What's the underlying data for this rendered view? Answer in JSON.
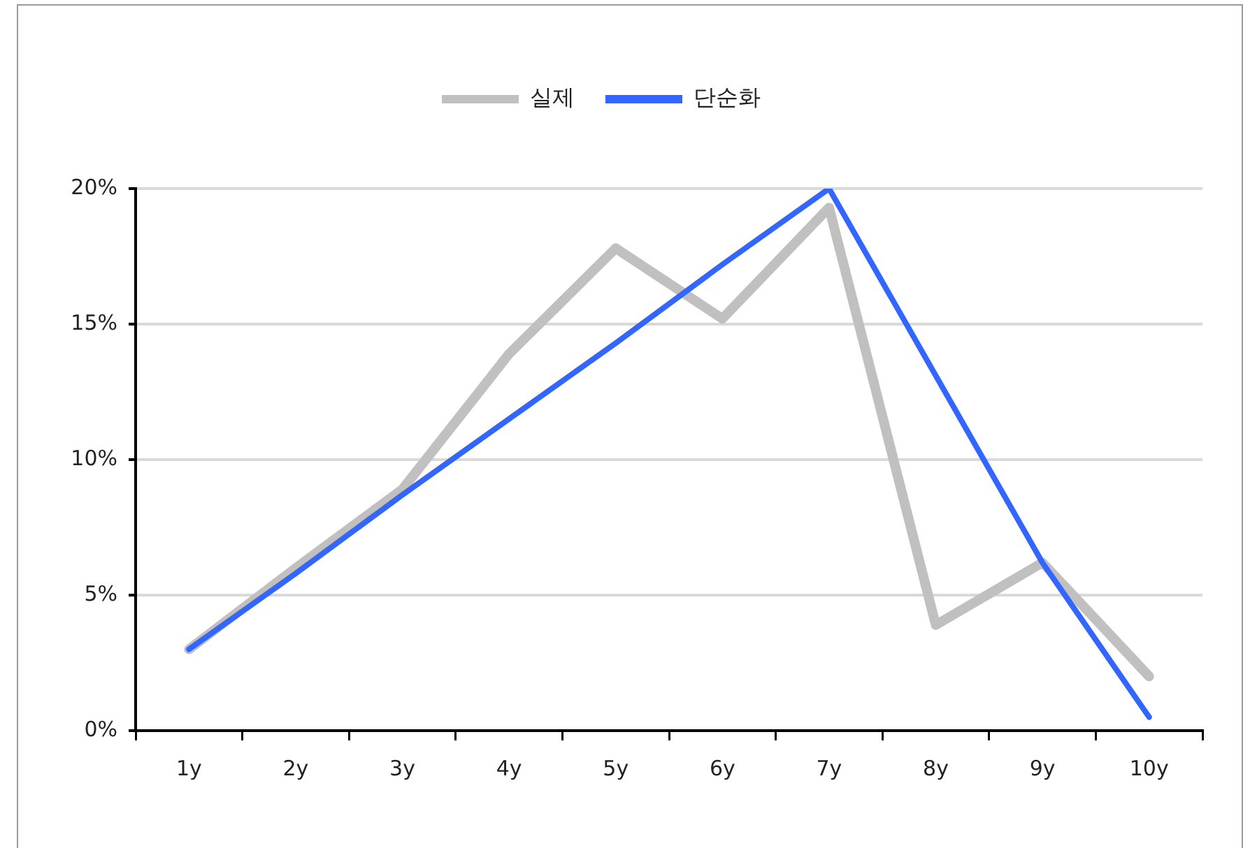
{
  "chart_data": {
    "type": "line",
    "categories": [
      "1y",
      "2y",
      "3y",
      "4y",
      "5y",
      "6y",
      "7y",
      "8y",
      "9y",
      "10y"
    ],
    "series": [
      {
        "name": "실제",
        "color": "#c0c0c0",
        "values": [
          3.0,
          6.0,
          8.9,
          13.9,
          17.8,
          15.2,
          19.3,
          3.9,
          6.2,
          2.0
        ]
      },
      {
        "name": "단순화",
        "color": "#3366ff",
        "values": [
          3.0,
          5.8,
          8.7,
          11.5,
          14.3,
          17.2,
          20.0,
          13.1,
          6.2,
          0.5
        ]
      }
    ],
    "ylim": [
      0,
      20
    ],
    "yticks": [
      {
        "value": 0,
        "label": "0%"
      },
      {
        "value": 5,
        "label": "5%"
      },
      {
        "value": 10,
        "label": "10%"
      },
      {
        "value": 15,
        "label": "15%"
      },
      {
        "value": 20,
        "label": "20%"
      }
    ],
    "grid": "y",
    "legend": "top",
    "marker": "none",
    "line_style": "solid"
  }
}
